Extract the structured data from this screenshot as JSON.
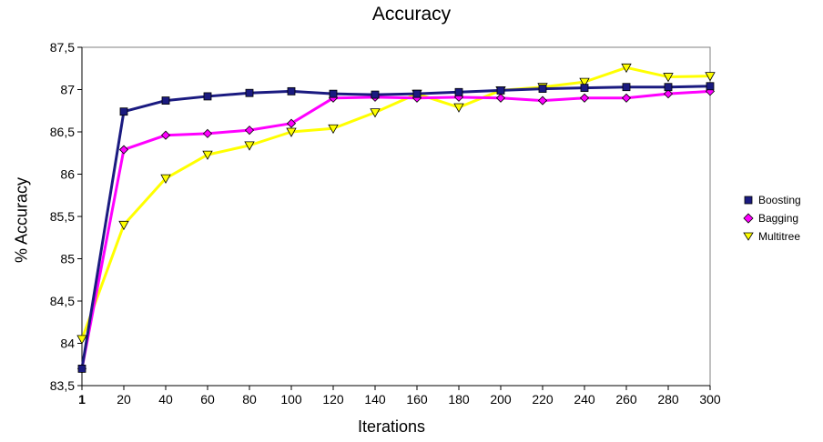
{
  "chart_data": {
    "type": "line",
    "title": "Accuracy",
    "xlabel": "Iterations",
    "ylabel": "% Accuracy",
    "categories": [
      "1",
      "20",
      "40",
      "60",
      "80",
      "100",
      "120",
      "140",
      "160",
      "180",
      "200",
      "220",
      "240",
      "260",
      "280",
      "300"
    ],
    "ylim": [
      83.5,
      87.5
    ],
    "yticks": [
      "83,5",
      "84",
      "84,5",
      "85",
      "85,5",
      "86",
      "86,5",
      "87",
      "87,5"
    ],
    "ytick_values": [
      83.5,
      84,
      84.5,
      85,
      85.5,
      86,
      86.5,
      87,
      87.5
    ],
    "legend_position": "right",
    "series": [
      {
        "name": "Boosting",
        "color": "#1a1a80",
        "marker": "square",
        "values": [
          83.7,
          86.74,
          86.87,
          86.92,
          86.96,
          86.98,
          86.95,
          86.94,
          86.95,
          86.97,
          86.99,
          87.01,
          87.02,
          87.03,
          87.03,
          87.04
        ]
      },
      {
        "name": "Bagging",
        "color": "#ff00ff",
        "marker": "diamond",
        "values": [
          83.7,
          86.29,
          86.46,
          86.48,
          86.52,
          86.6,
          86.9,
          86.91,
          86.9,
          86.91,
          86.9,
          86.87,
          86.9,
          86.9,
          86.95,
          86.98
        ]
      },
      {
        "name": "Multitree",
        "color": "#ffff00",
        "marker": "triangle",
        "values": [
          84.05,
          85.4,
          85.95,
          86.23,
          86.34,
          86.5,
          86.54,
          86.73,
          86.95,
          86.79,
          86.99,
          87.03,
          87.09,
          87.26,
          87.15,
          87.16
        ]
      }
    ]
  }
}
